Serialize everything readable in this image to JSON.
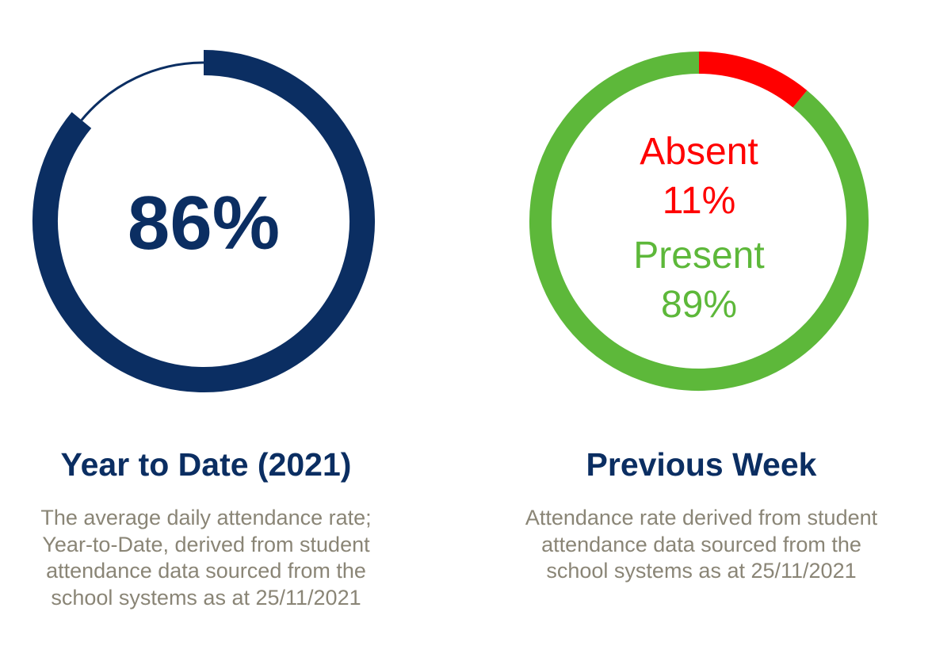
{
  "chart_data": [
    {
      "type": "pie",
      "variant": "donut",
      "center_label": "86%",
      "values": [
        86,
        14
      ],
      "segments": [
        {
          "value": 86,
          "color": "#0b2e62"
        },
        {
          "value": 14,
          "color": "#0b2e62",
          "style": "thin-track"
        }
      ],
      "title": "Year to Date (2021)",
      "description": [
        "The average daily attendance rate;",
        "Year-to-Date, derived from student",
        "attendance data sourced from the",
        "school systems as at 25/11/2021"
      ]
    },
    {
      "type": "pie",
      "variant": "donut",
      "categories": [
        "Absent",
        "Present"
      ],
      "values": [
        11,
        89
      ],
      "value_labels": [
        "11%",
        "89%"
      ],
      "colors": [
        "#ff0000",
        "#5db83a"
      ],
      "title": "Previous Week",
      "description": [
        "Attendance rate derived from student",
        "attendance data sourced from the",
        "school systems as at 25/11/2021"
      ]
    }
  ]
}
